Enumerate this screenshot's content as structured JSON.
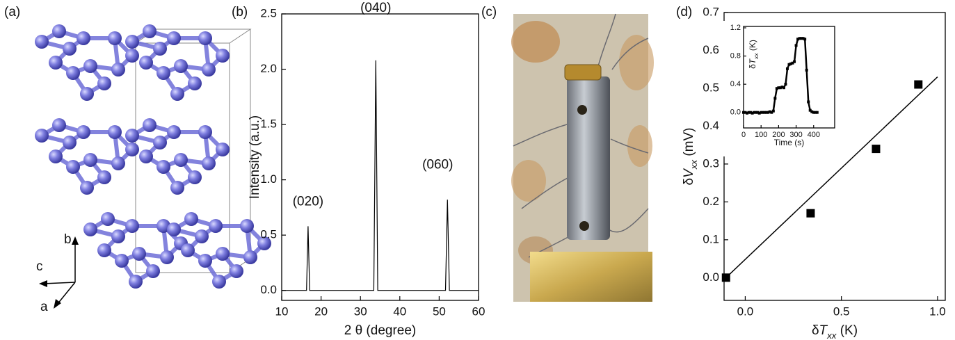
{
  "panel_labels": [
    "(a)",
    "(b)",
    "(c)",
    "(d)"
  ],
  "crystal_axes": [
    "b",
    "c",
    "a"
  ],
  "chart_data": [
    {
      "type": "line",
      "xlabel": "2 θ (degree)",
      "ylabel": "Intensity (a.u.)",
      "annotations": [
        "(020)",
        "(040)",
        "(060)"
      ],
      "x": [
        10,
        16.3,
        16.7,
        17.1,
        33.4,
        33.9,
        34.4,
        51.6,
        52.1,
        52.6,
        60
      ],
      "values": [
        0.0,
        0.0,
        0.58,
        0.0,
        0.0,
        2.08,
        0.0,
        0.0,
        0.82,
        0.0,
        0.0
      ],
      "color": "#000000",
      "xlim": [
        10,
        60
      ],
      "xticks": [
        10,
        20,
        30,
        40,
        50,
        60
      ],
      "ylim": [
        -0.09,
        2.5
      ],
      "yticks": [
        {
          "value": 0,
          "label": "0.0"
        },
        0.5,
        {
          "value": 1,
          "label": "1.0"
        },
        1.5,
        {
          "value": 2,
          "label": "2.0"
        },
        2.5
      ]
    },
    {
      "type": "scatter",
      "xlabel": [
        "δ",
        "T",
        "xx",
        " (K)"
      ],
      "ylabel": [
        "δ",
        "V",
        "xx",
        " (mV)"
      ],
      "x": [
        -0.1,
        0.34,
        0.68,
        0.9
      ],
      "values": [
        0.0,
        0.17,
        0.34,
        0.51
      ],
      "fit": {
        "x": [
          -0.1,
          1.0
        ],
        "values": [
          0.0,
          0.53
        ]
      },
      "color": "#000000",
      "xlim": [
        -0.11,
        1.04
      ],
      "xticks": [
        {
          "value": 0,
          "label": "0.0"
        },
        0.5,
        {
          "value": 1,
          "label": "1.0"
        }
      ],
      "ylim": [
        -0.06,
        0.7
      ],
      "yticks": [
        {
          "value": 0,
          "label": "0.0"
        },
        0.1,
        0.2,
        0.3,
        0.4,
        0.5,
        0.6,
        0.7
      ]
    },
    {
      "type": "line",
      "xlabel": "Time (s)",
      "ylabel": [
        "δ",
        "T",
        "xx",
        " (K)"
      ],
      "x": [
        0,
        10,
        20,
        30,
        40,
        50,
        60,
        70,
        80,
        90,
        100,
        110,
        120,
        130,
        140,
        150,
        160,
        170,
        180,
        190,
        200,
        210,
        220,
        230,
        240,
        250,
        260,
        270,
        280,
        290,
        300,
        310,
        320,
        330,
        340,
        350,
        360,
        370,
        380,
        390,
        400,
        410,
        420
      ],
      "values": [
        0.0,
        0.0,
        -0.01,
        0.0,
        0.0,
        -0.01,
        0.0,
        0.0,
        0.0,
        -0.01,
        0.0,
        0.0,
        0.0,
        0.0,
        0.0,
        0.01,
        0.0,
        0.02,
        0.2,
        0.34,
        0.35,
        0.35,
        0.36,
        0.35,
        0.4,
        0.62,
        0.68,
        0.69,
        0.7,
        0.72,
        0.95,
        1.04,
        1.05,
        1.05,
        1.05,
        1.04,
        0.6,
        0.15,
        0.03,
        0.01,
        0.0,
        0.0,
        0.0
      ],
      "color": "#000000",
      "xlim": [
        0,
        520
      ],
      "xticks": [
        0,
        100,
        200,
        300,
        400
      ],
      "ylim": [
        -0.22,
        1.22
      ],
      "yticks": [
        {
          "value": 0,
          "label": "0.0"
        },
        0.4,
        0.8,
        1.2
      ]
    }
  ]
}
